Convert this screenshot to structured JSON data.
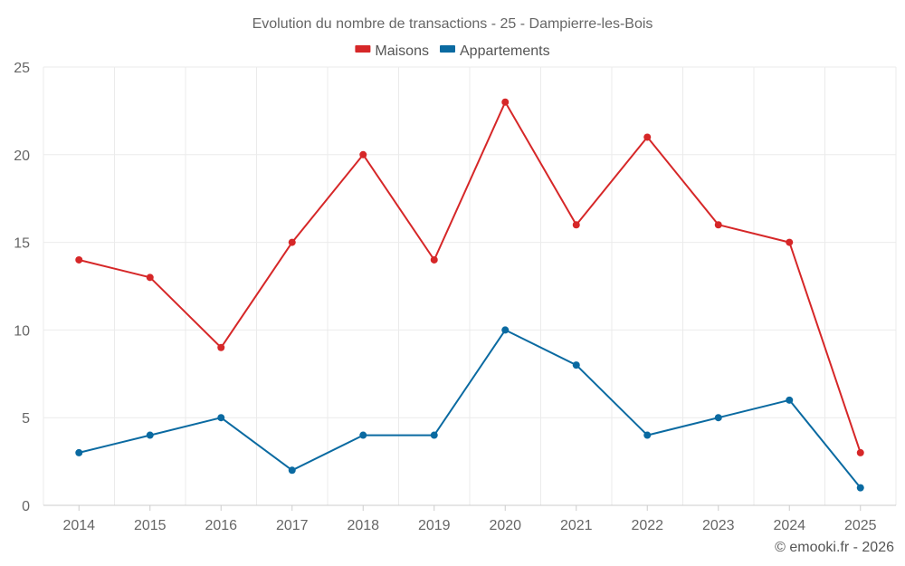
{
  "chart_data": {
    "type": "line",
    "title": "Evolution du nombre de transactions - 25 - Dampierre-les-Bois",
    "categories": [
      "2014",
      "2015",
      "2016",
      "2017",
      "2018",
      "2019",
      "2020",
      "2021",
      "2022",
      "2023",
      "2024",
      "2025"
    ],
    "series": [
      {
        "name": "Maisons",
        "color": "#d62728",
        "values": [
          14,
          13,
          9,
          15,
          20,
          14,
          23,
          16,
          21,
          16,
          15,
          3
        ]
      },
      {
        "name": "Appartements",
        "color": "#0a6aa1",
        "values": [
          3,
          4,
          5,
          2,
          4,
          4,
          10,
          8,
          4,
          5,
          6,
          1
        ]
      }
    ],
    "ylim": [
      0,
      25
    ],
    "yticks": [
      0,
      5,
      10,
      15,
      20,
      25
    ],
    "grid": true,
    "legend": "top-center",
    "xlabel": "",
    "ylabel": ""
  },
  "credit": "© emooki.fr - 2026"
}
